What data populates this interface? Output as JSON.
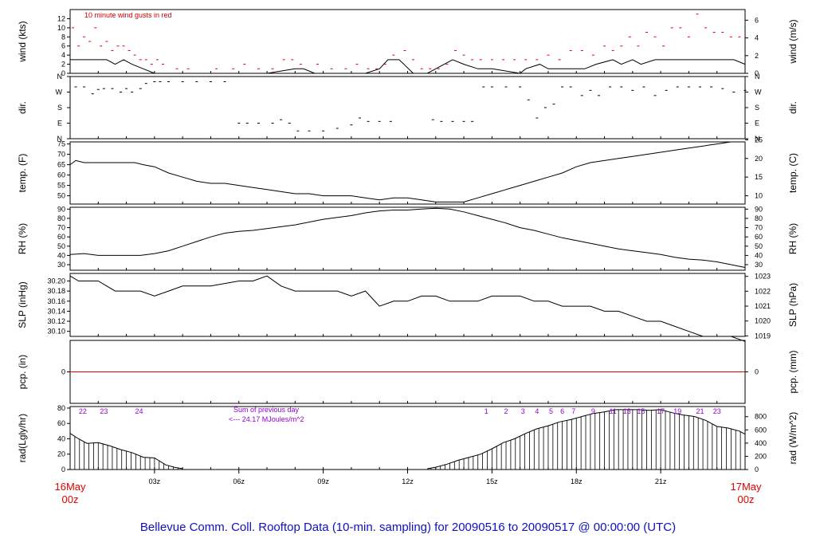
{
  "title": "Bellevue Comm. Coll. Rooftop Data (10-min. sampling) for 20090516  to  20090517 @ 00:00:00  (UTC)",
  "colors": {
    "title": "#1010c0",
    "edge_labels": "#e00000",
    "gusts": "#e00000",
    "precip_line": "#e00000",
    "hour_numbers": "#9400d3",
    "line": "#000000"
  },
  "time_axis": {
    "start_label": [
      "16May",
      "00z"
    ],
    "end_label": [
      "17May",
      "00z"
    ],
    "hour_ticks": [
      "03z",
      "06z",
      "09z",
      "12z",
      "15z",
      "18z",
      "21z"
    ]
  },
  "panels": {
    "wind": {
      "left_label": "wind (kts)",
      "right_label": "wind (m/s)",
      "note": "10  minute wind gusts in red"
    },
    "dir": {
      "left_label": "dir.",
      "right_label": "dir."
    },
    "temp": {
      "left_label": "temp. (F)",
      "right_label": "temp. (C)"
    },
    "rh": {
      "left_label": "RH (%)",
      "right_label": "RH (%)"
    },
    "slp": {
      "left_label": "SLP (inHg)",
      "right_label": "SLP (hPa)"
    },
    "pcp": {
      "left_label": "pcp. (in)",
      "right_label": "pcp. (mm)"
    },
    "rad": {
      "left_label": "rad(Lgly/hr)",
      "right_label": "rad (W/m^2)",
      "note_line1": "Sum of previous day",
      "note_line2": "<--- 24.17 MJoules/m^2"
    }
  },
  "chart_data": [
    {
      "type": "line",
      "name": "wind",
      "ylim": [
        0,
        14
      ],
      "left_ticks": [
        0,
        2,
        4,
        6,
        8,
        10,
        12
      ],
      "right_ticks": [
        0,
        2,
        4,
        6
      ],
      "x_hours": [
        0,
        1,
        1.3,
        1.6,
        1.9,
        2.2,
        2.6,
        3.0,
        3.5,
        4.5,
        6,
        7,
        8,
        8.3,
        8.7,
        9.5,
        10,
        10.5,
        11,
        11.3,
        11.7,
        12.2,
        12.7,
        13,
        13.6,
        14,
        14.5,
        15,
        16,
        16.2,
        16.7,
        17,
        17.5,
        18.3,
        18.7,
        19.3,
        19.6,
        20,
        20.3,
        20.8,
        21.2,
        21.7,
        22.2,
        23,
        23.6,
        24
      ],
      "y_wind_kts": [
        3,
        3,
        3,
        2,
        3,
        2,
        1,
        0,
        0,
        0,
        0,
        0,
        1,
        1,
        0,
        0,
        0,
        0,
        1,
        3,
        3,
        0,
        0,
        1,
        3,
        2,
        1,
        1,
        0,
        1,
        2,
        1,
        1,
        1,
        2,
        3,
        2,
        3,
        2,
        3,
        3,
        3,
        3,
        3,
        3,
        2
      ],
      "gusts_x_hours": [
        0.1,
        0.3,
        0.5,
        0.7,
        0.9,
        1.1,
        1.3,
        1.5,
        1.7,
        1.9,
        2.1,
        2.3,
        2.5,
        2.7,
        2.9,
        3.1,
        3.3,
        3.8,
        4.2,
        5.2,
        5.8,
        6.2,
        6.7,
        7.2,
        7.6,
        7.9,
        8.2,
        8.8,
        9.3,
        9.8,
        10.2,
        10.6,
        10.9,
        11.2,
        11.5,
        11.9,
        12.2,
        12.5,
        12.8,
        13.1,
        13.4,
        13.7,
        14.0,
        14.3,
        14.6,
        15.0,
        15.4,
        15.8,
        16.2,
        16.6,
        17.0,
        17.4,
        17.8,
        18.2,
        18.6,
        19.0,
        19.3,
        19.6,
        19.9,
        20.2,
        20.5,
        20.8,
        21.1,
        21.4,
        21.7,
        22.0,
        22.3,
        22.6,
        22.9,
        23.2,
        23.5,
        23.8
      ],
      "gusts_kts": [
        10,
        6,
        8,
        7,
        10,
        6,
        7,
        5,
        6,
        6,
        5,
        4,
        3,
        3,
        2,
        3,
        2,
        1,
        1,
        1,
        1,
        2,
        1,
        1,
        3,
        3,
        2,
        2,
        1,
        1,
        2,
        1,
        1,
        2,
        4,
        5,
        3,
        1,
        1,
        1,
        2,
        5,
        4,
        3,
        3,
        3,
        3,
        3,
        3,
        3,
        4,
        3,
        5,
        5,
        4,
        6,
        5,
        6,
        8,
        6,
        9,
        8,
        6,
        10,
        10,
        8,
        13,
        10,
        9,
        9,
        8,
        8
      ],
      "note": "10  minute wind gusts in red"
    },
    {
      "type": "scatter",
      "name": "dir.",
      "categories_axis": [
        "N",
        "E",
        "S",
        "W",
        "N"
      ],
      "x_hours": [
        0.2,
        0.5,
        0.8,
        1.0,
        1.2,
        1.5,
        1.8,
        2.0,
        2.2,
        2.5,
        2.7,
        3.0,
        3.2,
        3.5,
        4.0,
        4.5,
        5.0,
        5.5,
        6.0,
        6.3,
        6.7,
        7.2,
        7.5,
        7.8,
        8.1,
        8.5,
        9.0,
        9.5,
        10.0,
        10.3,
        10.6,
        11.0,
        11.4,
        11.8,
        12.2,
        12.5,
        12.9,
        13.2,
        13.6,
        14.0,
        14.3,
        14.7,
        15.0,
        15.5,
        16.0,
        16.3,
        16.6,
        16.9,
        17.2,
        17.5,
        17.8,
        18.2,
        18.5,
        18.8,
        19.2,
        19.6,
        20.0,
        20.4,
        20.8,
        21.2,
        21.6,
        22.0,
        22.4,
        22.8,
        23.2,
        23.6,
        24.0
      ],
      "direction_deg": [
        300,
        300,
        260,
        285,
        290,
        290,
        270,
        290,
        270,
        290,
        320,
        330,
        330,
        330,
        330,
        330,
        330,
        330,
        90,
        90,
        90,
        90,
        110,
        90,
        45,
        45,
        45,
        60,
        80,
        120,
        100,
        100,
        100,
        0,
        0,
        0,
        110,
        100,
        100,
        100,
        100,
        300,
        300,
        300,
        300,
        225,
        120,
        180,
        200,
        300,
        300,
        250,
        280,
        250,
        300,
        300,
        280,
        300,
        250,
        280,
        300,
        300,
        300,
        300,
        290,
        270,
        280
      ]
    },
    {
      "type": "line",
      "name": "temp",
      "ylim": [
        46,
        76
      ],
      "left_ticks": [
        50,
        55,
        60,
        65,
        70,
        75
      ],
      "right_ticks": [
        10,
        15,
        20,
        25
      ],
      "x_hours": [
        0,
        0.2,
        0.5,
        1,
        1.5,
        2,
        2.3,
        2.6,
        3,
        3.5,
        4,
        4.5,
        5,
        5.5,
        6,
        6.5,
        7,
        7.5,
        8,
        8.5,
        9,
        9.5,
        10,
        10.5,
        11,
        11.5,
        12,
        12.5,
        13,
        13.5,
        14,
        14.5,
        15,
        15.5,
        16,
        16.5,
        17,
        17.5,
        18,
        18.5,
        19,
        19.5,
        20,
        20.5,
        21,
        21.5,
        22,
        22.5,
        23,
        23.5,
        24
      ],
      "values_F": [
        65,
        67,
        66,
        66,
        66,
        66,
        66,
        65,
        64,
        61,
        59,
        57,
        56,
        56,
        55,
        54,
        53,
        52,
        51,
        51,
        50,
        50,
        50,
        49,
        48,
        49,
        49,
        48,
        47,
        47,
        47,
        49,
        51,
        53,
        55,
        57,
        59,
        61,
        64,
        66,
        67,
        68,
        69,
        70,
        71,
        72,
        73,
        74,
        75,
        76,
        76
      ]
    },
    {
      "type": "line",
      "name": "RH",
      "ylim": [
        24,
        92
      ],
      "left_ticks": [
        30,
        40,
        50,
        60,
        70,
        80,
        90
      ],
      "right_ticks": [
        30,
        40,
        50,
        60,
        70,
        80,
        90
      ],
      "x_hours": [
        0,
        0.5,
        1,
        1.5,
        2,
        2.5,
        3,
        3.5,
        4,
        4.5,
        5,
        5.5,
        6,
        6.5,
        7,
        7.5,
        8,
        8.5,
        9,
        9.5,
        10,
        10.5,
        11,
        11.5,
        12,
        12.5,
        13,
        13.5,
        14,
        14.5,
        15,
        15.5,
        16,
        16.5,
        17,
        17.5,
        18,
        18.5,
        19,
        19.5,
        20,
        20.5,
        21,
        21.5,
        22,
        22.5,
        23,
        23.5,
        24
      ],
      "values_pct": [
        41,
        42,
        40,
        40,
        40,
        40,
        42,
        45,
        50,
        55,
        60,
        64,
        66,
        67,
        69,
        71,
        73,
        76,
        79,
        81,
        83,
        86,
        88,
        89,
        89,
        90,
        91,
        90,
        87,
        83,
        79,
        75,
        70,
        67,
        63,
        59,
        56,
        53,
        50,
        47,
        45,
        43,
        41,
        38,
        36,
        35,
        33,
        30,
        27
      ]
    },
    {
      "type": "line",
      "name": "SLP",
      "ylim": [
        30.09,
        30.215
      ],
      "left_ticks": [
        30.1,
        30.12,
        30.14,
        30.16,
        30.18,
        30.2
      ],
      "right_ticks": [
        1019,
        1020,
        1021,
        1022,
        1023
      ],
      "x_hours": [
        0,
        0.3,
        1,
        1.3,
        1.6,
        2,
        2.5,
        3,
        3.5,
        4,
        5,
        6,
        6.5,
        7,
        7.5,
        8,
        9,
        9.5,
        10,
        10.5,
        11,
        11.5,
        12,
        12.5,
        13,
        13.5,
        14,
        14.5,
        15,
        16,
        16.5,
        17,
        17.5,
        18,
        18.5,
        19,
        19.5,
        20,
        20.5,
        21,
        21.5,
        22,
        22.5,
        23,
        23.5,
        24
      ],
      "values_inHg": [
        30.21,
        30.2,
        30.2,
        30.19,
        30.18,
        30.18,
        30.18,
        30.17,
        30.18,
        30.19,
        30.19,
        30.2,
        30.2,
        30.21,
        30.19,
        30.18,
        30.18,
        30.18,
        30.17,
        30.18,
        30.15,
        30.16,
        30.16,
        30.17,
        30.17,
        30.16,
        30.16,
        30.16,
        30.17,
        30.17,
        30.16,
        30.16,
        30.15,
        30.15,
        30.15,
        30.14,
        30.14,
        30.13,
        30.12,
        30.12,
        30.11,
        30.1,
        30.09,
        30.09,
        30.09,
        30.08
      ]
    },
    {
      "type": "line",
      "name": "pcp",
      "ylim": [
        -1,
        1
      ],
      "left_ticks": [
        0
      ],
      "right_ticks": [
        0
      ],
      "x_hours": [
        0,
        24
      ],
      "values_in": [
        0,
        0
      ]
    },
    {
      "type": "area",
      "name": "rad",
      "ylim": [
        0,
        82
      ],
      "left_ticks": [
        0,
        20,
        40,
        60,
        80
      ],
      "right_ticks": [
        0,
        200,
        400,
        600,
        800
      ],
      "x_hours": [
        0,
        0.3,
        0.6,
        1,
        1.4,
        1.8,
        2.2,
        2.6,
        3,
        3.4,
        3.7,
        4,
        12.7,
        13,
        13.4,
        13.8,
        14.2,
        14.6,
        15,
        15.4,
        15.8,
        16.2,
        16.6,
        17,
        17.4,
        17.8,
        18.2,
        18.6,
        19,
        19.4,
        19.8,
        20.2,
        20.6,
        21,
        21.4,
        21.8,
        22.2,
        22.6,
        23,
        23.4,
        23.8,
        24
      ],
      "values_lgly": [
        47,
        40,
        34,
        35,
        31,
        26,
        22,
        16,
        15,
        6,
        3,
        1,
        1,
        3,
        7,
        12,
        16,
        20,
        27,
        35,
        40,
        47,
        53,
        57,
        62,
        65,
        69,
        73,
        75,
        78,
        78,
        78,
        77,
        78,
        74,
        71,
        69,
        64,
        56,
        54,
        50,
        46
      ],
      "hour_numbers": [
        {
          "label": "22",
          "x_hour": 0.45
        },
        {
          "label": "23",
          "x_hour": 1.2
        },
        {
          "label": "24",
          "x_hour": 2.45
        },
        {
          "label": "1",
          "x_hour": 14.8
        },
        {
          "label": "2",
          "x_hour": 15.5
        },
        {
          "label": "3",
          "x_hour": 16.1
        },
        {
          "label": "4",
          "x_hour": 16.6
        },
        {
          "label": "5",
          "x_hour": 17.1
        },
        {
          "label": "6",
          "x_hour": 17.5
        },
        {
          "label": "7",
          "x_hour": 17.9
        },
        {
          "label": "9",
          "x_hour": 18.6
        },
        {
          "label": "11",
          "x_hour": 19.3
        },
        {
          "label": "13",
          "x_hour": 19.8
        },
        {
          "label": "15",
          "x_hour": 20.3
        },
        {
          "label": "17",
          "x_hour": 21.0
        },
        {
          "label": "19",
          "x_hour": 21.6
        },
        {
          "label": "21",
          "x_hour": 22.4
        },
        {
          "label": "23",
          "x_hour": 23.0
        }
      ],
      "note": [
        "Sum of previous day",
        "<--- 24.17 MJoules/m^2"
      ]
    }
  ]
}
